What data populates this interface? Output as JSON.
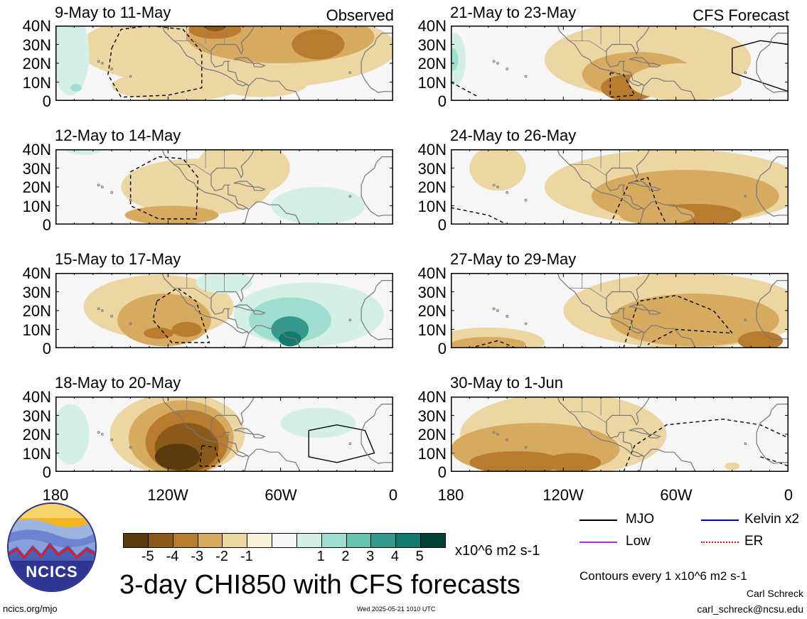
{
  "panels": [
    {
      "id": "p1",
      "title": "9-May to 11-May",
      "tag": "Observed",
      "kind": "obs1"
    },
    {
      "id": "p2",
      "title": "12-May to 14-May",
      "tag": "",
      "kind": "obs2"
    },
    {
      "id": "p3",
      "title": "15-May to 17-May",
      "tag": "",
      "kind": "obs3"
    },
    {
      "id": "p4",
      "title": "18-May to 20-May",
      "tag": "",
      "kind": "obs4"
    },
    {
      "id": "p5",
      "title": "21-May to 23-May",
      "tag": "CFS Forecast",
      "kind": "fc1"
    },
    {
      "id": "p6",
      "title": "24-May to 26-May",
      "tag": "",
      "kind": "fc2"
    },
    {
      "id": "p7",
      "title": "27-May to 29-May",
      "tag": "",
      "kind": "fc3"
    },
    {
      "id": "p8",
      "title": "30-May to 1-Jun",
      "tag": "",
      "kind": "fc4"
    }
  ],
  "lat_labels": [
    "40N",
    "30N",
    "20N",
    "10N",
    "0"
  ],
  "lon_labels": [
    "180",
    "120W",
    "60W",
    "0"
  ],
  "colorbar": {
    "colors": [
      "#5c3a0f",
      "#8a5a1b",
      "#b97b2f",
      "#d7aa61",
      "#ecd7a4",
      "#f9f0d8",
      "#f6f6f6",
      "#d3efe6",
      "#9fded0",
      "#67c3b0",
      "#359a8c",
      "#137a6d",
      "#033f35"
    ],
    "labels": [
      "-5",
      "-4",
      "-3",
      "-2",
      "-1",
      "1",
      "2",
      "3",
      "4",
      "5"
    ],
    "units": "x10^6 m2 s-1"
  },
  "title": "3-day CHI850 with CFS forecasts",
  "legend": [
    {
      "label": "MJO",
      "color": "#000000",
      "style": "solid"
    },
    {
      "label": "Kelvin x2",
      "color": "#0000cc",
      "style": "solid"
    },
    {
      "label": "Low",
      "color": "#9933cc",
      "style": "solid"
    },
    {
      "label": "ER",
      "color": "#dd0000",
      "style": "dotted"
    }
  ],
  "contour_note": "Contours every 1 x10^6 m2 s-1",
  "credit_name": "Carl Schreck",
  "credit_email": "carl_schreck@ncsu.edu",
  "footer_url": "ncics.org/mjo",
  "timestamp": "Wed 2025-05-21 1010 UTC",
  "logo_text": "NCICS"
}
